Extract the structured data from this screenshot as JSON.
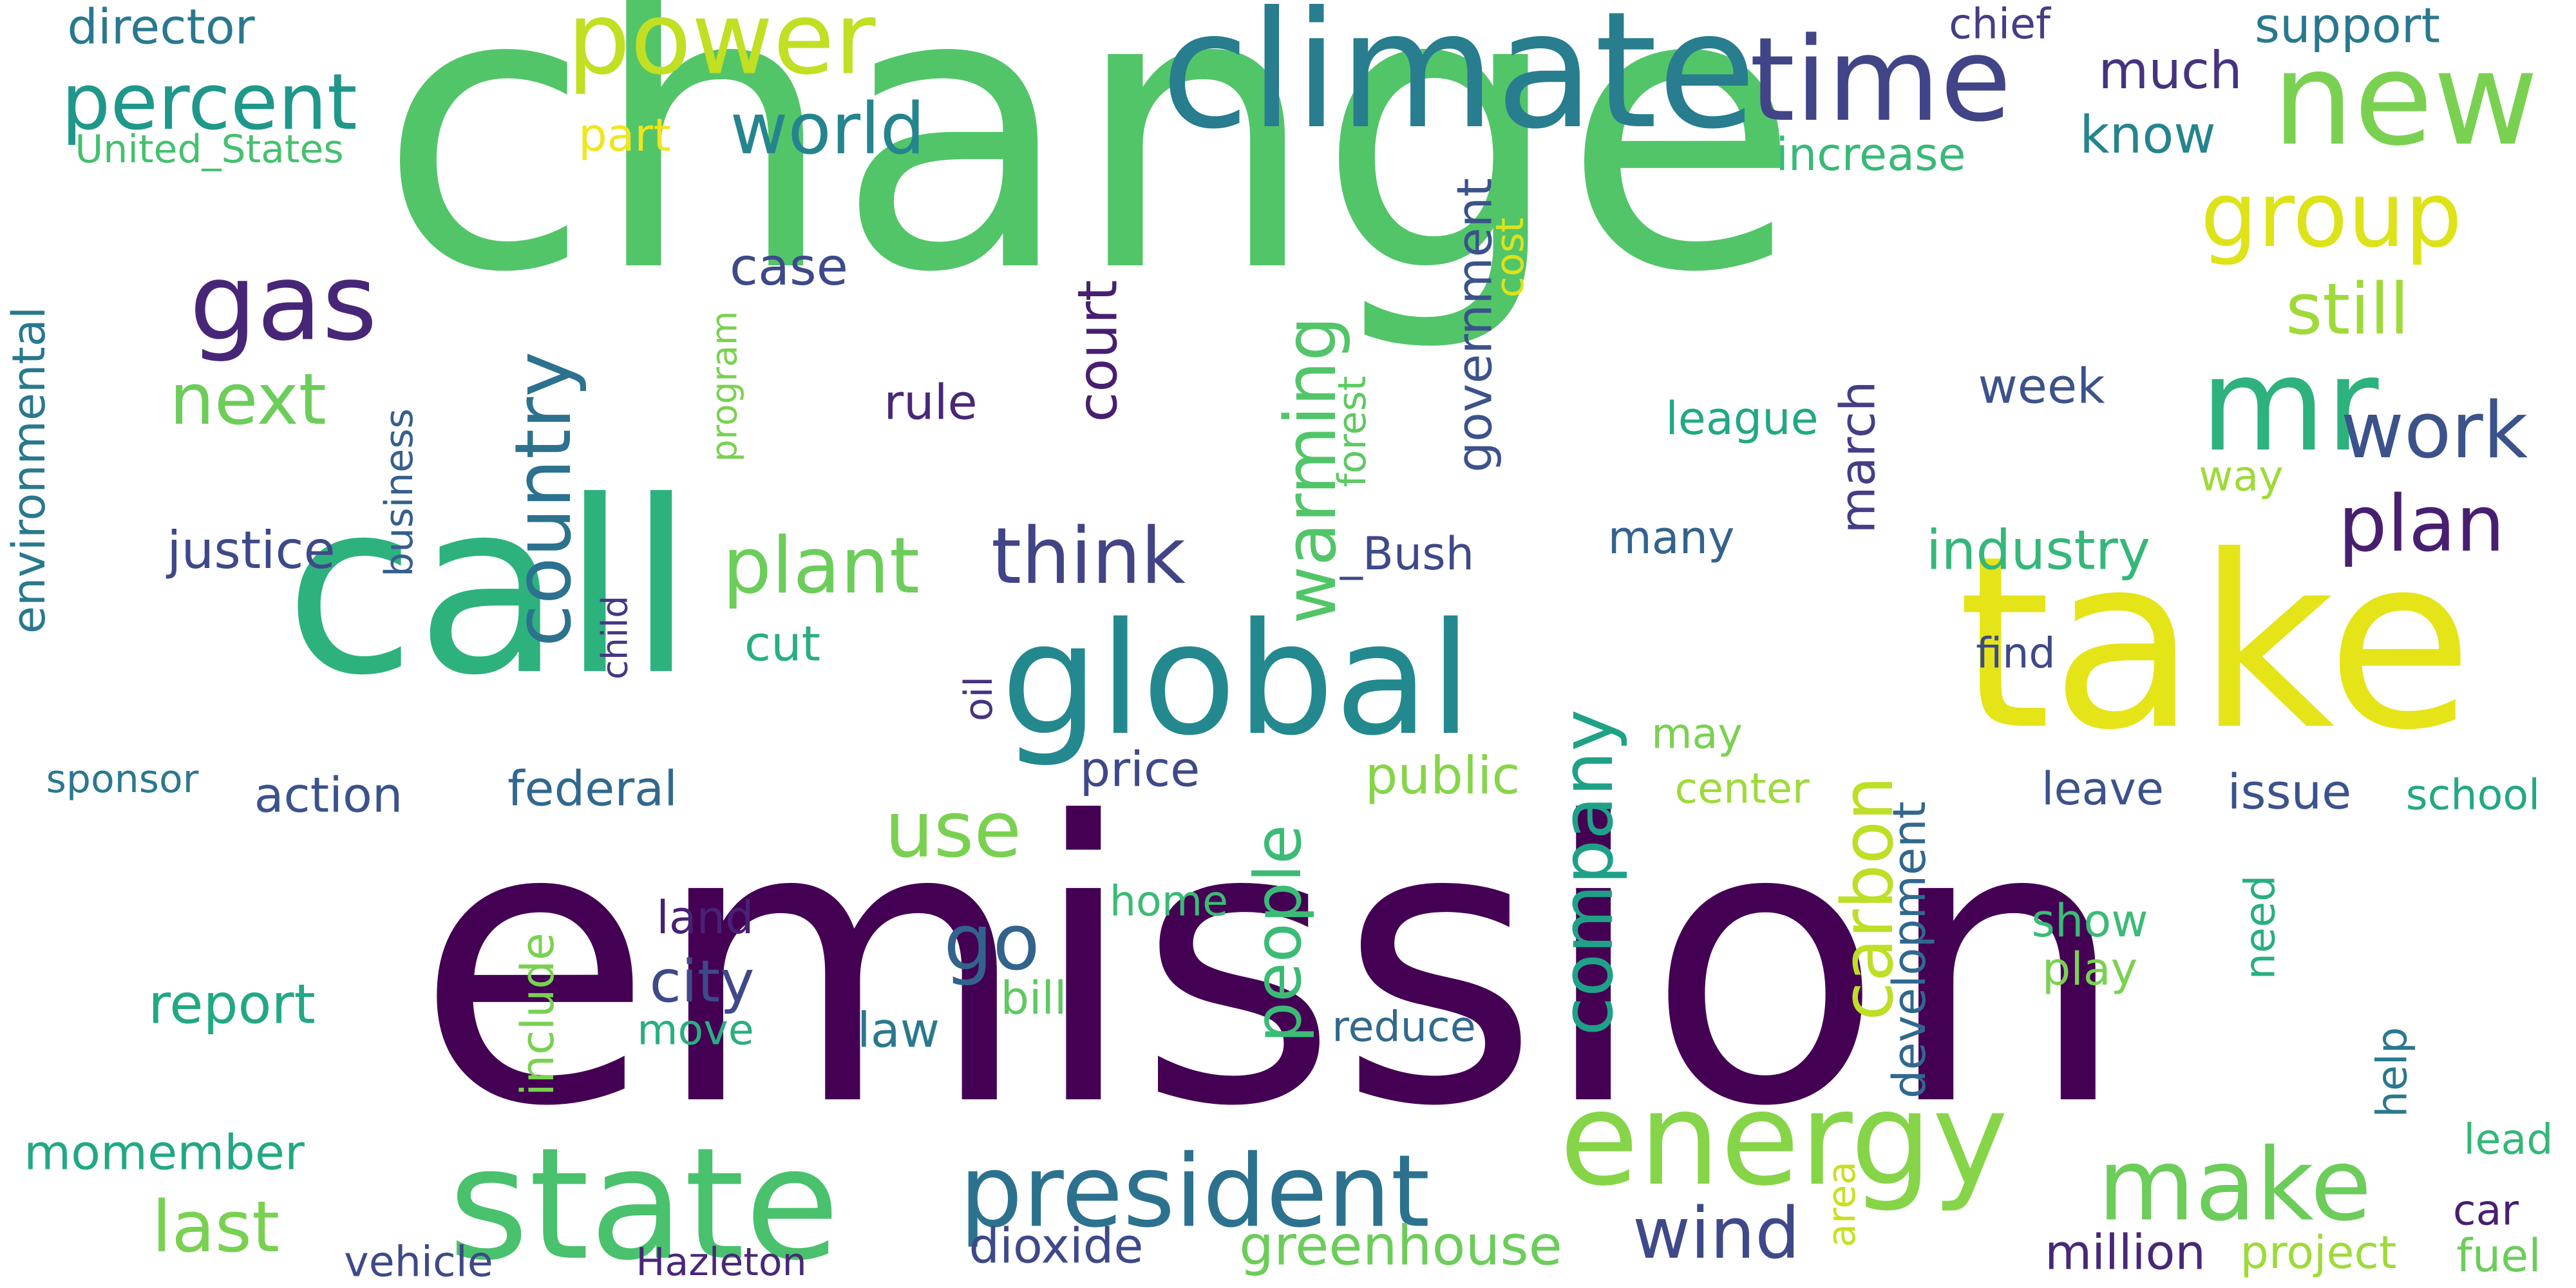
{
  "word_cloud": {
    "words": [
      {
        "text": "change",
        "color": "#52c569"
      },
      {
        "text": "emission",
        "color": "#440154"
      },
      {
        "text": "call",
        "color": "#2db27d"
      },
      {
        "text": "take",
        "color": "#e5e419"
      },
      {
        "text": "climate",
        "color": "#287d8e"
      },
      {
        "text": "global",
        "color": "#23898e"
      },
      {
        "text": "state",
        "color": "#4ac16d"
      },
      {
        "text": "energy",
        "color": "#86d549"
      },
      {
        "text": "president",
        "color": "#2c728e"
      },
      {
        "text": "make",
        "color": "#6ccd5a"
      },
      {
        "text": "power",
        "color": "#c2df23"
      },
      {
        "text": "time",
        "color": "#414487"
      },
      {
        "text": "new",
        "color": "#7ad151"
      },
      {
        "text": "mr",
        "color": "#2db27d"
      },
      {
        "text": "gas",
        "color": "#482677"
      },
      {
        "text": "percent",
        "color": "#1f988b"
      },
      {
        "text": "group",
        "color": "#dde318"
      },
      {
        "text": "country",
        "color": "#2c728e"
      },
      {
        "text": "plant",
        "color": "#6ccd5a"
      },
      {
        "text": "think",
        "color": "#414487"
      },
      {
        "text": "world",
        "color": "#25848e"
      },
      {
        "text": "work",
        "color": "#3b528b"
      },
      {
        "text": "plan",
        "color": "#481f70"
      },
      {
        "text": "still",
        "color": "#9fda3a"
      },
      {
        "text": "next",
        "color": "#6ccd5a"
      },
      {
        "text": "warming",
        "color": "#52c569"
      },
      {
        "text": "company",
        "color": "#1fa187"
      },
      {
        "text": "carbon",
        "color": "#bddf26"
      },
      {
        "text": "people",
        "color": "#3bbb75"
      },
      {
        "text": "use",
        "color": "#7ad151"
      },
      {
        "text": "go",
        "color": "#33638d"
      },
      {
        "text": "wind",
        "color": "#3e4989"
      },
      {
        "text": "last",
        "color": "#7ad151"
      },
      {
        "text": "industry",
        "color": "#35b779"
      },
      {
        "text": "greenhouse",
        "color": "#6ccd5a"
      },
      {
        "text": "court",
        "color": "#481f70"
      },
      {
        "text": "report",
        "color": "#22a884"
      },
      {
        "text": "dioxide",
        "color": "#3e4989"
      },
      {
        "text": "government",
        "color": "#3b528b"
      },
      {
        "text": "march",
        "color": "#433e85"
      },
      {
        "text": "development",
        "color": "#31688e"
      },
      {
        "text": "public",
        "color": "#86d549"
      },
      {
        "text": "city",
        "color": "#3e4989"
      },
      {
        "text": "director",
        "color": "#2a788e"
      },
      {
        "text": "United_States",
        "color": "#46c06f"
      },
      {
        "text": "environmental",
        "color": "#2a788e"
      },
      {
        "text": "sponsor",
        "color": "#2a788e"
      },
      {
        "text": "part",
        "color": "#f1e51d"
      },
      {
        "text": "much",
        "color": "#46337e"
      },
      {
        "text": "know",
        "color": "#25848e"
      },
      {
        "text": "increase",
        "color": "#38b977"
      },
      {
        "text": "support",
        "color": "#2a788e"
      },
      {
        "text": "chief",
        "color": "#433e85"
      },
      {
        "text": "case",
        "color": "#3e4989"
      },
      {
        "text": "cost",
        "color": "#dde318"
      },
      {
        "text": "program",
        "color": "#7ad151"
      },
      {
        "text": "forest",
        "color": "#5ec962"
      },
      {
        "text": "business",
        "color": "#355f8d"
      },
      {
        "text": "child",
        "color": "#453781"
      },
      {
        "text": "justice",
        "color": "#3e4989"
      },
      {
        "text": "rule",
        "color": "#482878"
      },
      {
        "text": "_Bush",
        "color": "#3e4989"
      },
      {
        "text": "league",
        "color": "#22a884"
      },
      {
        "text": "week",
        "color": "#3b528b"
      },
      {
        "text": "way",
        "color": "#9fda3a"
      },
      {
        "text": "many",
        "color": "#33638d"
      },
      {
        "text": "find",
        "color": "#3e4989"
      },
      {
        "text": "oil",
        "color": "#46337e"
      },
      {
        "text": "cut",
        "color": "#29af7f"
      },
      {
        "text": "may",
        "color": "#7ad151"
      },
      {
        "text": "center",
        "color": "#9fda3a"
      },
      {
        "text": "price",
        "color": "#3e4989"
      },
      {
        "text": "federal",
        "color": "#31688e"
      },
      {
        "text": "action",
        "color": "#3b528b"
      },
      {
        "text": "leave",
        "color": "#3b528b"
      },
      {
        "text": "issue",
        "color": "#3b528b"
      },
      {
        "text": "school",
        "color": "#22a884"
      },
      {
        "text": "include",
        "color": "#7ad151"
      },
      {
        "text": "land",
        "color": "#482173"
      },
      {
        "text": "home",
        "color": "#3bbb75"
      },
      {
        "text": "show",
        "color": "#3bbb75"
      },
      {
        "text": "play",
        "color": "#7ad151"
      },
      {
        "text": "need",
        "color": "#29af7f"
      },
      {
        "text": "bill",
        "color": "#5ec962"
      },
      {
        "text": "move",
        "color": "#29af7f"
      },
      {
        "text": "law",
        "color": "#2a788e"
      },
      {
        "text": "reduce",
        "color": "#31688e"
      },
      {
        "text": "help",
        "color": "#2a788e"
      },
      {
        "text": "lead",
        "color": "#35b779"
      },
      {
        "text": "car",
        "color": "#481f70"
      },
      {
        "text": "momember",
        "color": "#22a884"
      },
      {
        "text": "area",
        "color": "#c8e020"
      },
      {
        "text": "vehicle",
        "color": "#3e4989"
      },
      {
        "text": "Hazleton",
        "color": "#482878"
      },
      {
        "text": "million",
        "color": "#482878"
      },
      {
        "text": "project",
        "color": "#9fda3a"
      },
      {
        "text": "fuel",
        "color": "#6ccd5a"
      }
    ]
  }
}
